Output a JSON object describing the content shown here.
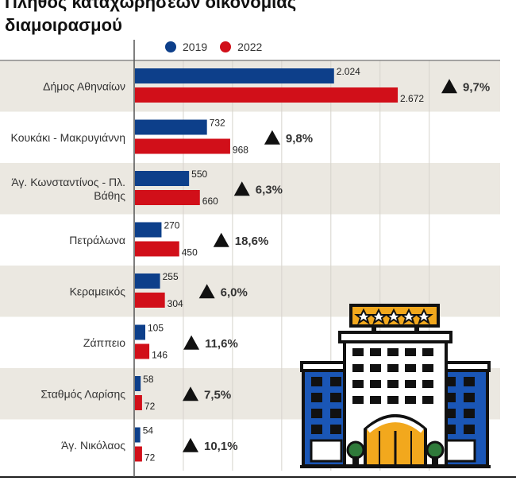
{
  "title": "Πλήθος καταχωρήσεων οικονομίας διαμοιρασμού",
  "colors": {
    "y2019": "#0d3f8a",
    "y2022": "#d10f19",
    "band": "#ebe8e1",
    "grid": "#d6d3cc"
  },
  "legend": [
    {
      "name": "2019"
    },
    {
      "name": "2022"
    }
  ],
  "chart_data": {
    "type": "bar",
    "orientation": "horizontal",
    "title": "Πλήθος καταχωρήσεων οικονομίας διαμοιρασμού",
    "xlabel": "",
    "ylabel": "",
    "grid": true,
    "legend_position": "top",
    "categories": [
      [
        "Δήμος Αθηναίων"
      ],
      [
        "Κουκάκι - Μακρυγιάννη"
      ],
      [
        "Άγ. Κωνσταντίνος - Πλ.",
        "Βάθης"
      ],
      [
        "Πετράλωνα"
      ],
      [
        "Κεραμεικός"
      ],
      [
        "Ζάππειο"
      ],
      [
        "Σταθμός Λαρίσης"
      ],
      [
        "Άγ. Νικόλαος"
      ]
    ],
    "series": [
      {
        "name": "2019",
        "values": [
          2024,
          732,
          550,
          270,
          255,
          105,
          58,
          54
        ],
        "labels": [
          "2.024",
          "732",
          "550",
          "270",
          "255",
          "105",
          "58",
          "54"
        ]
      },
      {
        "name": "2022",
        "values": [
          2672,
          968,
          660,
          450,
          304,
          146,
          72,
          72
        ],
        "labels": [
          "2.672",
          "968",
          "660",
          "450",
          "304",
          "146",
          "72",
          "72"
        ]
      }
    ],
    "change": [
      "9,7%",
      "9,8%",
      "6,3%",
      "18,6%",
      "6,0%",
      "11,6%",
      "7,5%",
      "10,1%"
    ],
    "xlim": [
      0,
      3000
    ]
  }
}
